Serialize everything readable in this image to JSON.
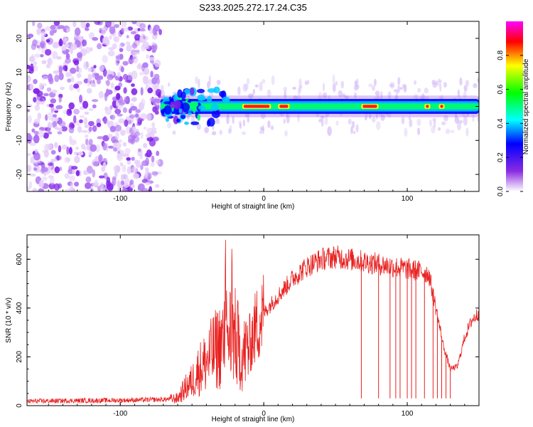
{
  "title": "S233.2025.272.17.24.C35",
  "chart_data": [
    {
      "type": "heatmap",
      "xlabel": "Height of straight line (km)",
      "ylabel": "Frequency (Hz)",
      "xlim": [
        -165,
        150
      ],
      "ylim": [
        -25,
        25
      ],
      "xticks": [
        -100,
        0,
        100
      ],
      "yticks": [
        -20,
        -10,
        0,
        10,
        20
      ],
      "colorbar": {
        "label": "Normalized spectral amplitude",
        "range": [
          0,
          1
        ],
        "ticks": [
          0.0,
          0.2,
          0.4,
          0.6,
          0.8
        ],
        "colors": [
          "#ffffff",
          "#8a2be2",
          "#0000ff",
          "#00ffff",
          "#00ff00",
          "#ffff00",
          "#ff0000",
          "#ff00ff"
        ]
      },
      "regions": {
        "noise_region_x": [
          -165,
          -72
        ],
        "signal_band_center_hz": 0,
        "peak_segments": [
          {
            "x0": -15,
            "x1": 5,
            "amp": 0.9
          },
          {
            "x0": 10,
            "x1": 18,
            "amp": 0.95
          },
          {
            "x0": 68,
            "x1": 80,
            "amp": 1.0
          },
          {
            "x0": 112,
            "x1": 116,
            "amp": 0.9
          },
          {
            "x0": 122,
            "x1": 126,
            "amp": 0.9
          }
        ]
      }
    },
    {
      "type": "line",
      "xlabel": "Height of straight line (km)",
      "ylabel": "SNR (10 * v/v)",
      "xlim": [
        -165,
        150
      ],
      "ylim": [
        0,
        700
      ],
      "xticks": [
        -100,
        0,
        100
      ],
      "yticks": [
        0,
        200,
        400,
        600
      ],
      "series": [
        {
          "color": "#e8201f",
          "x": [
            -165,
            -140,
            -100,
            -70,
            -60,
            -55,
            -50,
            -45,
            -40,
            -35,
            -30,
            -25,
            -20,
            -15,
            -10,
            -5,
            0,
            10,
            20,
            30,
            40,
            50,
            60,
            70,
            80,
            90,
            100,
            110,
            115,
            120,
            125,
            130,
            135,
            140,
            145,
            150
          ],
          "values": [
            18,
            20,
            22,
            25,
            30,
            70,
            100,
            150,
            180,
            220,
            250,
            300,
            280,
            200,
            250,
            330,
            380,
            450,
            520,
            570,
            600,
            610,
            600,
            590,
            580,
            570,
            560,
            550,
            540,
            400,
            250,
            150,
            160,
            280,
            350,
            380
          ]
        }
      ],
      "dropouts_x": [
        68,
        80,
        88,
        92,
        95,
        100,
        103,
        106,
        112,
        118,
        121,
        124,
        127,
        130
      ]
    }
  ]
}
